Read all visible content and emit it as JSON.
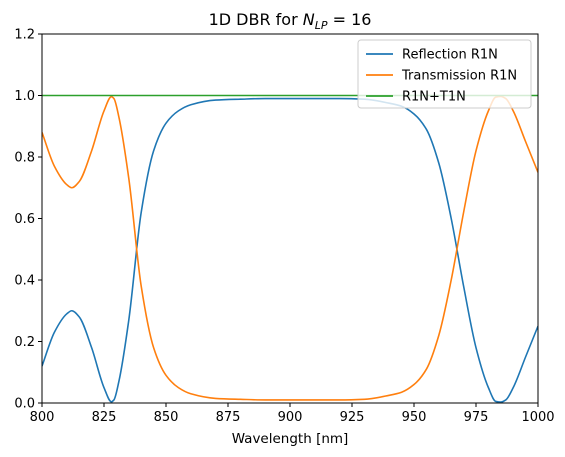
{
  "chart_data": {
    "type": "line",
    "title": "1D DBR for ",
    "title_math_base": "N",
    "title_math_sub": "LP",
    "title_suffix": " = 16",
    "xlabel": "Wavelength [nm]",
    "ylabel": "",
    "xlim": [
      800,
      1000
    ],
    "ylim": [
      0,
      1.2
    ],
    "x_ticks": [
      800,
      825,
      850,
      875,
      900,
      925,
      950,
      975,
      1000
    ],
    "x_tick_labels": [
      "800",
      "825",
      "850",
      "875",
      "900",
      "925",
      "950",
      "975",
      "1000"
    ],
    "y_ticks": [
      0,
      0.2,
      0.4,
      0.6,
      0.8,
      1.0,
      1.2
    ],
    "y_tick_labels": [
      "0.0",
      "0.2",
      "0.4",
      "0.6",
      "0.8",
      "1.0",
      "1.2"
    ],
    "grid": false,
    "legend_position": "top-right",
    "x": [
      800,
      805,
      810,
      812,
      815,
      820,
      825,
      828,
      829,
      831,
      835,
      840,
      845,
      850,
      855,
      860,
      870,
      880,
      890,
      900,
      910,
      920,
      930,
      940,
      945,
      950,
      955,
      960,
      965,
      970,
      975,
      980,
      983,
      985,
      987,
      990,
      995,
      1000
    ],
    "series": [
      {
        "name": "Reflection R1N",
        "color": "#1f77b4",
        "values": [
          0.12,
          0.23,
          0.29,
          0.3,
          0.28,
          0.18,
          0.05,
          0.004,
          0.01,
          0.07,
          0.27,
          0.62,
          0.82,
          0.91,
          0.95,
          0.97,
          0.985,
          0.988,
          0.99,
          0.99,
          0.99,
          0.99,
          0.988,
          0.975,
          0.965,
          0.94,
          0.89,
          0.78,
          0.6,
          0.38,
          0.18,
          0.05,
          0.005,
          0.003,
          0.01,
          0.05,
          0.15,
          0.25
        ]
      },
      {
        "name": "Transmission R1N",
        "color": "#ff7f0e",
        "values": [
          0.88,
          0.77,
          0.71,
          0.7,
          0.72,
          0.82,
          0.95,
          0.996,
          0.99,
          0.93,
          0.73,
          0.38,
          0.18,
          0.09,
          0.05,
          0.03,
          0.015,
          0.012,
          0.01,
          0.01,
          0.01,
          0.01,
          0.012,
          0.025,
          0.035,
          0.06,
          0.11,
          0.22,
          0.4,
          0.62,
          0.82,
          0.95,
          0.995,
          0.997,
          0.99,
          0.95,
          0.85,
          0.75
        ]
      },
      {
        "name": "R1N+T1N",
        "color": "#2ca02c",
        "values": [
          1.0,
          1.0,
          1.0,
          1.0,
          1.0,
          1.0,
          1.0,
          1.0,
          1.0,
          1.0,
          1.0,
          1.0,
          1.0,
          1.0,
          1.0,
          1.0,
          1.0,
          1.0,
          1.0,
          1.0,
          1.0,
          1.0,
          1.0,
          1.0,
          1.0,
          1.0,
          1.0,
          1.0,
          1.0,
          1.0,
          1.0,
          1.0,
          1.0,
          1.0,
          1.0,
          1.0,
          1.0,
          1.0
        ]
      }
    ]
  }
}
